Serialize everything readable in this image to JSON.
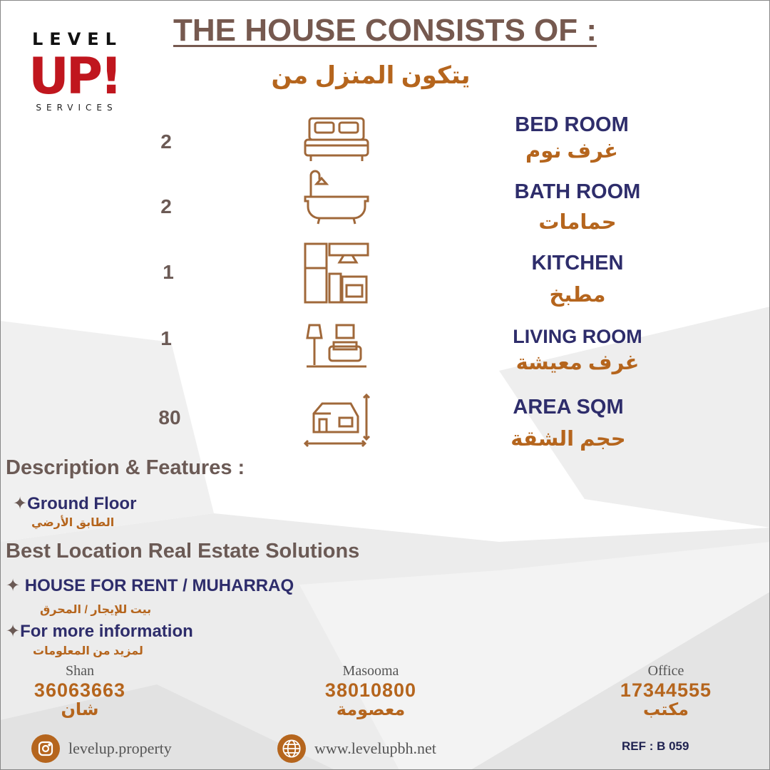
{
  "logo": {
    "top": "LEVEL",
    "main": "UP!",
    "bottom": "SERVICES"
  },
  "header": {
    "title": "THE HOUSE CONSISTS OF :",
    "title_ar": "يتكون المنزل من"
  },
  "features": [
    {
      "count": "2",
      "label": "BED ROOM",
      "label_ar": "غرف نوم",
      "icon": "bed-icon"
    },
    {
      "count": "2",
      "label": "BATH ROOM",
      "label_ar": "حمامات",
      "icon": "bathtub-icon"
    },
    {
      "count": "1",
      "label": "KITCHEN",
      "label_ar": "مطبخ",
      "icon": "kitchen-icon"
    },
    {
      "count": "1",
      "label": "LIVING ROOM",
      "label_ar": "غرف معيشة",
      "icon": "living-room-icon"
    },
    {
      "count": "80",
      "label": "AREA SQM",
      "label_ar": "حجم الشقة",
      "icon": "house-area-icon"
    }
  ],
  "description": {
    "heading": "Description & Features :",
    "items": [
      {
        "text": "Ground Floor",
        "text_ar": "الطابق الأرضي"
      }
    ]
  },
  "location": {
    "heading": "Best Location Real Estate Solutions",
    "items": [
      {
        "text": "HOUSE FOR RENT / MUHARRAQ",
        "text_ar": "بيت للإيجار / المحرق"
      },
      {
        "text": "For more information",
        "text_ar": "لمزيد من المعلومات"
      }
    ],
    "bullet": "✦"
  },
  "contacts": [
    {
      "name": "Shan",
      "phone": "36063663",
      "name_ar": "شان"
    },
    {
      "name": "Masooma",
      "phone": "38010800",
      "name_ar": "معصومة"
    },
    {
      "name": "Office",
      "phone": "17344555",
      "name_ar": "مكتب"
    }
  ],
  "footer": {
    "instagram": "levelup.property",
    "website": "www.levelupbh.net",
    "ref": "REF : B 059"
  },
  "colors": {
    "title": "#76594f",
    "navy": "#2e2d6b",
    "accent": "#b5651d",
    "logo_red": "#c0161e"
  }
}
